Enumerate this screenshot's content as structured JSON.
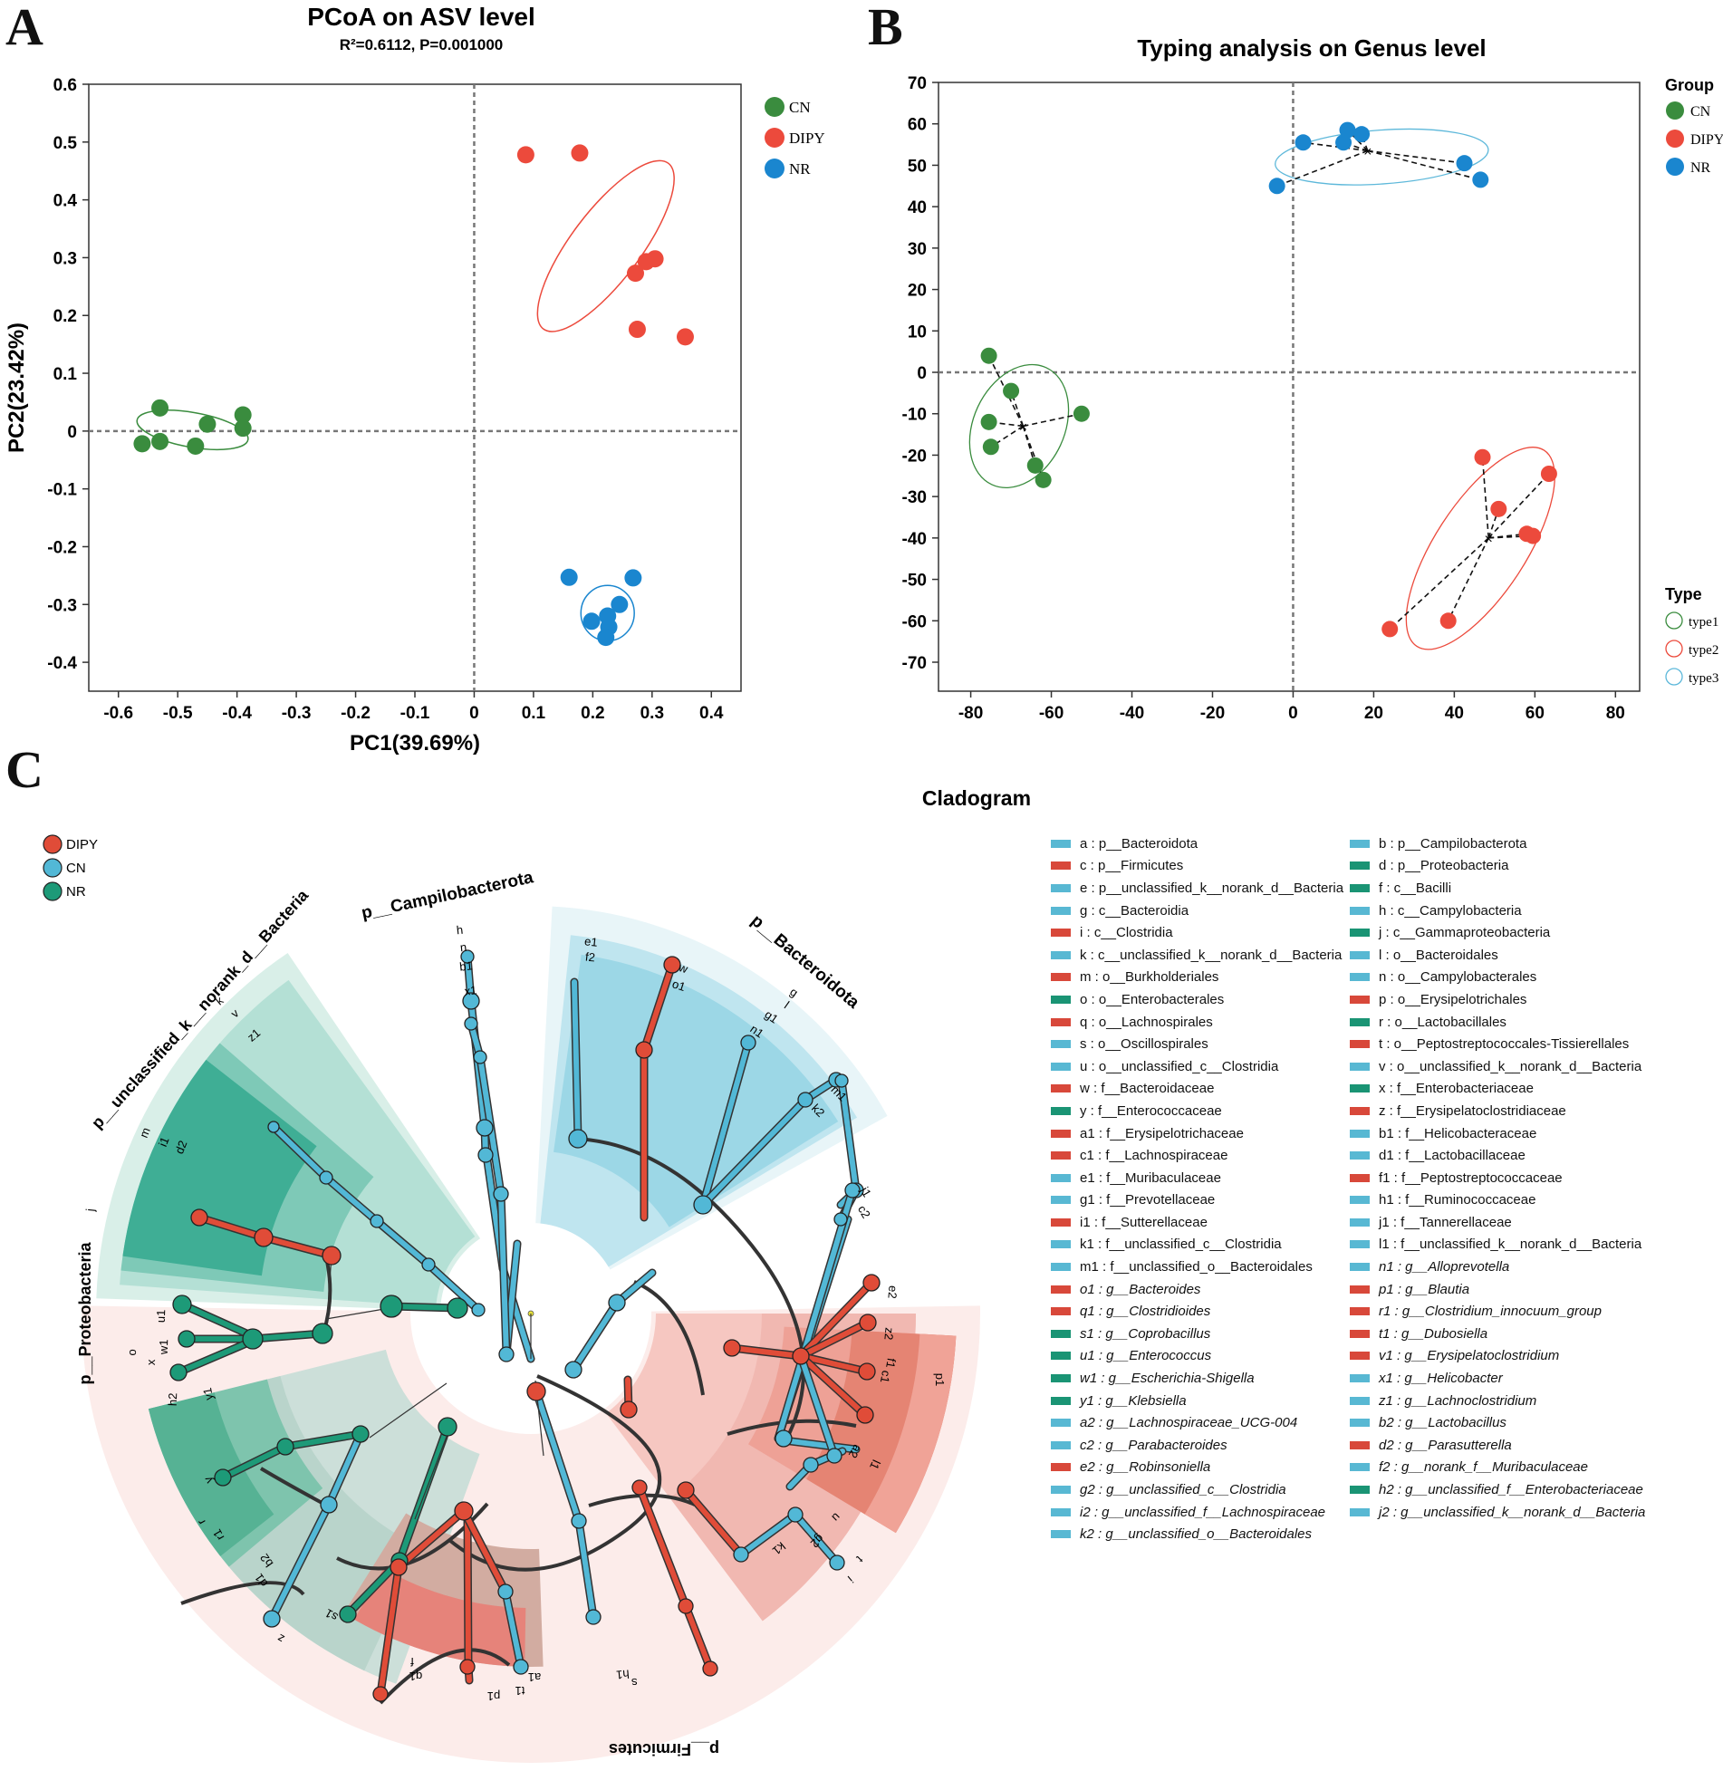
{
  "panel_letters": {
    "a": "A",
    "b": "B",
    "c": "C"
  },
  "colors": {
    "CN": "#3a8c3e",
    "DIPY": "#ec4a3c",
    "NR": "#1a86cf",
    "cladeRed": "#e04c38",
    "cladeBlue": "#52b8d6",
    "cladeGreen": "#1d9a78",
    "legTeal": "#1a9474",
    "legRed": "#d8483a",
    "legBlue": "#58b8d3"
  },
  "chart_data": [
    {
      "type": "scatter",
      "title": "PCoA on ASV level",
      "subtitle": "R²=0.6112, P=0.001000",
      "xlabel": "PC1(39.69%)",
      "ylabel": "PC2(23.42%)",
      "xlim": [
        -0.65,
        0.45
      ],
      "ylim": [
        -0.45,
        0.6
      ],
      "xticks": [
        "-0.6",
        "-0.5",
        "-0.4",
        "-0.3",
        "-0.2",
        "-0.1",
        "0",
        "0.1",
        "0.2",
        "0.3",
        "0.4"
      ],
      "yticks": [
        "0.6",
        "0.5",
        "0.4",
        "0.3",
        "0.2",
        "0.1",
        "0",
        "-0.1",
        "-0.2",
        "-0.3",
        "-0.4"
      ],
      "legend": [
        "CN",
        "DIPY",
        "NR"
      ],
      "series": [
        {
          "name": "CN",
          "points": [
            [
              -0.53,
              0.04
            ],
            [
              -0.39,
              0.028
            ],
            [
              -0.45,
              0.012
            ],
            [
              -0.39,
              0.005
            ],
            [
              -0.56,
              -0.022
            ],
            [
              -0.53,
              -0.018
            ],
            [
              -0.47,
              -0.026
            ]
          ],
          "ellipse": {
            "cx": -0.475,
            "cy": 0.002,
            "rx": 0.095,
            "ry": 0.03,
            "angle": 10
          }
        },
        {
          "name": "DIPY",
          "points": [
            [
              0.087,
              0.478
            ],
            [
              0.178,
              0.481
            ],
            [
              0.305,
              0.298
            ],
            [
              0.29,
              0.293
            ],
            [
              0.272,
              0.273
            ],
            [
              0.275,
              0.176
            ],
            [
              0.356,
              0.163
            ]
          ],
          "ellipse": {
            "cx": 0.222,
            "cy": 0.32,
            "rx": 0.175,
            "ry": 0.06,
            "angle": -53
          }
        },
        {
          "name": "NR",
          "points": [
            [
              0.16,
              -0.253
            ],
            [
              0.268,
              -0.254
            ],
            [
              0.245,
              -0.3
            ],
            [
              0.225,
              -0.32
            ],
            [
              0.198,
              -0.329
            ],
            [
              0.227,
              -0.339
            ],
            [
              0.222,
              -0.357
            ]
          ],
          "ellipse": {
            "cx": 0.225,
            "cy": -0.315,
            "rx": 0.045,
            "ry": 0.048,
            "angle": 0
          }
        }
      ]
    },
    {
      "type": "scatter",
      "title": "Typing analysis on Genus level",
      "xlabel": "",
      "ylabel": "",
      "xlim": [
        -88,
        86
      ],
      "ylim": [
        -77,
        70
      ],
      "xticks": [
        "-80",
        "-60",
        "-40",
        "-20",
        "0",
        "20",
        "40",
        "60",
        "80"
      ],
      "yticks": [
        "70",
        "60",
        "50",
        "40",
        "30",
        "20",
        "10",
        "0",
        "-10",
        "-20",
        "-30",
        "-40",
        "-50",
        "-60",
        "-70"
      ],
      "legend_group_title": "Group",
      "legend": [
        "CN",
        "DIPY",
        "NR"
      ],
      "legend_type_title": "Type",
      "types": [
        "type1",
        "type2",
        "type3"
      ],
      "series": [
        {
          "name": "CN",
          "centroid": [
            -67,
            -13
          ],
          "points": [
            [
              -75.5,
              4
            ],
            [
              -70,
              -4.5
            ],
            [
              -75.5,
              -12
            ],
            [
              -52.5,
              -10
            ],
            [
              -75,
              -18
            ],
            [
              -64,
              -22.5
            ],
            [
              -62,
              -26
            ]
          ],
          "ellipse": {
            "cx": -68,
            "cy": -13,
            "rx": 16,
            "ry": 11,
            "angle": -65
          }
        },
        {
          "name": "DIPY",
          "centroid": [
            48.5,
            -40
          ],
          "points": [
            [
              47,
              -20.5
            ],
            [
              63.5,
              -24.5
            ],
            [
              51,
              -33
            ],
            [
              58,
              -39
            ],
            [
              59.5,
              -39.5
            ],
            [
              38.5,
              -60
            ],
            [
              24,
              -62
            ]
          ],
          "ellipse": {
            "cx": 46.5,
            "cy": -42.5,
            "rx": 29,
            "ry": 11,
            "angle": -57
          }
        },
        {
          "name": "NR",
          "centroid": [
            18.5,
            53.5
          ],
          "points": [
            [
              13.5,
              58.5
            ],
            [
              17,
              57.5
            ],
            [
              2.5,
              55.5
            ],
            [
              12.5,
              55.5
            ],
            [
              42.5,
              50.5
            ],
            [
              46.5,
              46.5
            ],
            [
              -4,
              45
            ]
          ],
          "ellipse": {
            "cx": 22,
            "cy": 52,
            "rx": 26.5,
            "ry": 6.5,
            "angle": -4
          }
        }
      ]
    },
    {
      "type": "cladogram",
      "title": "Cladogram",
      "legend": [
        "DIPY",
        "CN",
        "NR"
      ],
      "phylum_labels": [
        "p__Campilobacterota",
        "p__Bacteroidota",
        "p__unclassified_k__norank_d__Bacteria",
        "p__Proteobacteria",
        "p__Firmicutes"
      ],
      "node_labels": [
        "h",
        "n",
        "b1",
        "x1",
        "e1",
        "f2",
        "w",
        "o1",
        "g",
        "l",
        "g1",
        "n1",
        "m1",
        "k2",
        "j1",
        "c2",
        "k",
        "v",
        "z1",
        "m",
        "i1",
        "d2",
        "j",
        "o",
        "x",
        "w1",
        "u1",
        "h2",
        "y1",
        "y",
        "r",
        "r1",
        "b2",
        "d1",
        "s1",
        "z",
        "f",
        "q1",
        "p1",
        "a1",
        "t1",
        "h1",
        "s",
        "i",
        "u",
        "g2",
        "k1",
        "t",
        "a2",
        "l1",
        "c1",
        "f1",
        "z2",
        "e2",
        "p1",
        "q"
      ],
      "entries_left": [
        [
          "a : p__Bacteroidota",
          "blue"
        ],
        [
          "c : p__Firmicutes",
          "red"
        ],
        [
          "e : p__unclassified_k__norank_d__Bacteria",
          "blue"
        ],
        [
          "g : c__Bacteroidia",
          "blue"
        ],
        [
          "i : c__Clostridia",
          "red"
        ],
        [
          "k : c__unclassified_k__norank_d__Bacteria",
          "blue"
        ],
        [
          "m : o__Burkholderiales",
          "red"
        ],
        [
          "o : o__Enterobacterales",
          "teal"
        ],
        [
          "q : o__Lachnospirales",
          "red"
        ],
        [
          "s : o__Oscillospirales",
          "blue"
        ],
        [
          "u : o__unclassified_c__Clostridia",
          "blue"
        ],
        [
          "w : f__Bacteroidaceae",
          "red"
        ],
        [
          "y : f__Enterococcaceae",
          "teal"
        ],
        [
          "a1 : f__Erysipelotrichaceae",
          "red"
        ],
        [
          "c1 : f__Lachnospiraceae",
          "red"
        ],
        [
          "e1 : f__Muribaculaceae",
          "blue"
        ],
        [
          "g1 : f__Prevotellaceae",
          "blue"
        ],
        [
          "i1 : f__Sutterellaceae",
          "red"
        ],
        [
          "k1 : f__unclassified_c__Clostridia",
          "blue"
        ],
        [
          "m1 : f__unclassified_o__Bacteroidales",
          "blue"
        ],
        [
          "o1 : g__Bacteroides",
          "red"
        ],
        [
          "q1 : g__Clostridioides",
          "red"
        ],
        [
          "s1 : g__Coprobacillus",
          "teal"
        ],
        [
          "u1 : g__Enterococcus",
          "teal"
        ],
        [
          "w1 : g__Escherichia-Shigella",
          "teal"
        ],
        [
          "y1 : g__Klebsiella",
          "teal"
        ],
        [
          "a2 : g__Lachnospiraceae_UCG-004",
          "blue"
        ],
        [
          "c2 : g__Parabacteroides",
          "blue"
        ],
        [
          "e2 : g__Robinsoniella",
          "red"
        ],
        [
          "g2 : g__unclassified_c__Clostridia",
          "blue"
        ],
        [
          "i2 : g__unclassified_f__Lachnospiraceae",
          "blue"
        ],
        [
          "k2 : g__unclassified_o__Bacteroidales",
          "blue"
        ]
      ],
      "entries_right": [
        [
          "b : p__Campilobacterota",
          "blue"
        ],
        [
          "d : p__Proteobacteria",
          "teal"
        ],
        [
          "f : c__Bacilli",
          "teal"
        ],
        [
          "h : c__Campylobacteria",
          "blue"
        ],
        [
          "j : c__Gammaproteobacteria",
          "teal"
        ],
        [
          "l : o__Bacteroidales",
          "blue"
        ],
        [
          "n : o__Campylobacterales",
          "blue"
        ],
        [
          "p : o__Erysipelotrichales",
          "red"
        ],
        [
          "r : o__Lactobacillales",
          "teal"
        ],
        [
          "t : o__Peptostreptococcales-Tissierellales",
          "red"
        ],
        [
          "v : o__unclassified_k__norank_d__Bacteria",
          "blue"
        ],
        [
          "x : f__Enterobacteriaceae",
          "teal"
        ],
        [
          "z : f__Erysipelatoclostridiaceae",
          "red"
        ],
        [
          "b1 : f__Helicobacteraceae",
          "blue"
        ],
        [
          "d1 : f__Lactobacillaceae",
          "blue"
        ],
        [
          "f1 : f__Peptostreptococcaceae",
          "red"
        ],
        [
          "h1 : f__Ruminococcaceae",
          "blue"
        ],
        [
          "j1 : f__Tannerellaceae",
          "blue"
        ],
        [
          "l1 : f__unclassified_k__norank_d__Bacteria",
          "blue"
        ],
        [
          "n1 : g__Alloprevotella",
          "blue"
        ],
        [
          "p1 : g__Blautia",
          "red"
        ],
        [
          "r1 : g__Clostridium_innocuum_group",
          "red"
        ],
        [
          "t1 : g__Dubosiella",
          "red"
        ],
        [
          "v1 : g__Erysipelatoclostridium",
          "red"
        ],
        [
          "x1 : g__Helicobacter",
          "blue"
        ],
        [
          "z1 : g__Lachnoclostridium",
          "blue"
        ],
        [
          "b2 : g__Lactobacillus",
          "blue"
        ],
        [
          "d2 : g__Parasutterella",
          "red"
        ],
        [
          "f2 : g__norank_f__Muribaculaceae",
          "blue"
        ],
        [
          "h2 : g__unclassified_f__Enterobacteriaceae",
          "teal"
        ],
        [
          "j2 : g__unclassified_k__norank_d__Bacteria",
          "blue"
        ]
      ]
    }
  ]
}
